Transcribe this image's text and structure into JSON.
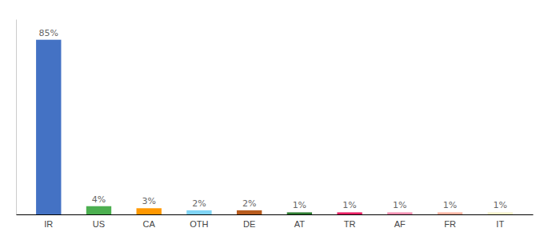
{
  "chart_data": {
    "type": "bar",
    "categories": [
      "IR",
      "US",
      "CA",
      "OTH",
      "DE",
      "AT",
      "TR",
      "AF",
      "FR",
      "IT"
    ],
    "values": [
      85,
      4,
      3,
      2,
      2,
      1,
      1,
      1,
      1,
      1
    ],
    "value_labels": [
      "85%",
      "4%",
      "3%",
      "2%",
      "2%",
      "1%",
      "1%",
      "1%",
      "1%",
      "1%"
    ],
    "colors": [
      "#4472c4",
      "#4caf50",
      "#ff9800",
      "#80d4f5",
      "#b85c1e",
      "#2e7d32",
      "#e91e63",
      "#f48fb1",
      "#ffb3a0",
      "#f5f0c8"
    ],
    "ylim": [
      0,
      95
    ],
    "grid": false,
    "data_labels": true,
    "tick_labels": "x"
  }
}
